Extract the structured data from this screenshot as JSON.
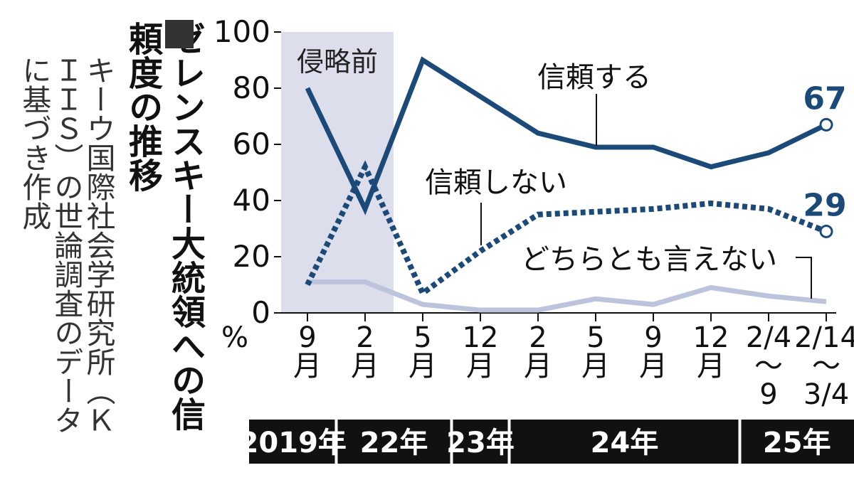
{
  "title": "ゼレンスキー大統領への信頼度の推移",
  "source": "キーウ国際社会学研究所（ＫＩＩＳ）の世論調査のデータに基づき作成",
  "chart_data": {
    "type": "line",
    "y_unit": "%",
    "categories": [
      "9\n月",
      "2\n月",
      "5\n月",
      "12\n月",
      "2\n月",
      "5\n月",
      "9\n月",
      "12\n月",
      "2/4\n〜\n9",
      "2/14\n〜\n3/4"
    ],
    "years": [
      "2019年",
      "22年",
      null,
      "23年",
      "24年",
      null,
      null,
      null,
      "25年",
      null
    ],
    "annotation": "侵略前",
    "series": [
      {
        "name": "信頼する",
        "color": "#1b4a78",
        "style": "solid",
        "values": [
          80,
          37,
          90,
          77,
          64,
          59,
          59,
          52,
          57,
          67
        ]
      },
      {
        "name": "信頼しない",
        "color": "#1b4a78",
        "style": "dotted",
        "values": [
          10,
          52,
          7,
          22,
          35,
          36,
          37,
          39,
          37,
          29
        ]
      },
      {
        "name": "どちらとも言えない",
        "color": "#bcc3da",
        "style": "solid",
        "values": [
          11,
          11,
          3,
          1,
          1,
          5,
          3,
          9,
          6,
          4
        ]
      }
    ],
    "ylim": [
      0,
      100
    ],
    "yticks": [
      0,
      20,
      40,
      60,
      80,
      100
    ]
  }
}
